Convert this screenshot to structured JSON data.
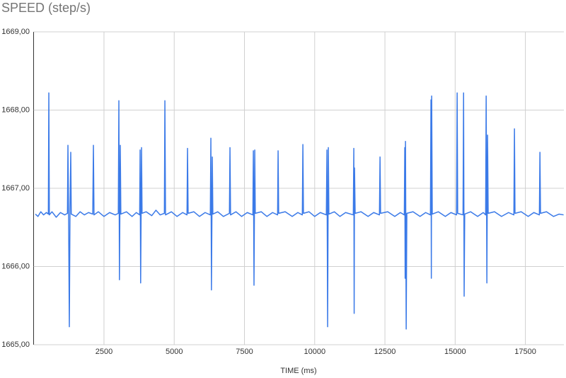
{
  "chart_data": {
    "type": "line",
    "title": "SPEED (step/s)",
    "x_label": "TIME (ms)",
    "color": "#3b7ae8",
    "xlim": [
      0,
      18870
    ],
    "xticks": [
      2500,
      5000,
      7500,
      10000,
      12500,
      15000,
      17500
    ],
    "ylim": [
      1665,
      1669
    ],
    "yticks": [
      {
        "value": 1665,
        "label": "1665,00"
      },
      {
        "value": 1666,
        "label": "1666,00"
      },
      {
        "value": 1667,
        "label": "1667,00"
      },
      {
        "value": 1668,
        "label": "1668,00"
      },
      {
        "value": 1669,
        "label": "1669,00"
      }
    ],
    "grid": true,
    "x": [
      60,
      150,
      250,
      350,
      450,
      520,
      537,
      555,
      650,
      800,
      950,
      1100,
      1200,
      1217,
      1240,
      1267,
      1290,
      1317,
      1335,
      1500,
      1650,
      1800,
      1950,
      2100,
      2124,
      2145,
      2300,
      2500,
      2700,
      2900,
      3010,
      3030,
      3050,
      3081,
      3100,
      3300,
      3500,
      3650,
      3770,
      3786,
      3805,
      3837,
      3855,
      4000,
      4200,
      4350,
      4500,
      4650,
      4668,
      4690,
      4900,
      5100,
      5300,
      5455,
      5474,
      5495,
      5700,
      5900,
      6100,
      6285,
      6305,
      6325,
      6356,
      6375,
      6550,
      6750,
      6965,
      6985,
      7005,
      7200,
      7400,
      7600,
      7800,
      7817,
      7840,
      7867,
      7885,
      8100,
      8300,
      8500,
      8680,
      8698,
      8718,
      8950,
      9200,
      9400,
      9560,
      9580,
      9600,
      9800,
      10000,
      10200,
      10415,
      10436,
      10461,
      10486,
      10505,
      10700,
      10900,
      11100,
      11375,
      11393,
      11405,
      11418,
      11440,
      11650,
      11900,
      12100,
      12305,
      12326,
      12345,
      12600,
      12850,
      13050,
      13190,
      13207,
      13220,
      13232,
      13257,
      13280,
      13500,
      13750,
      13950,
      14120,
      14139,
      14152,
      14164,
      14185,
      14400,
      14650,
      14850,
      15050,
      15071,
      15090,
      15280,
      15300,
      15320,
      15340,
      15550,
      15800,
      16000,
      16085,
      16104,
      16129,
      16154,
      16175,
      16400,
      16650,
      16900,
      17090,
      17111,
      17130,
      17350,
      17600,
      17800,
      17998,
      18018,
      18038,
      18250,
      18500,
      18700,
      18860
    ],
    "values": [
      1666.67,
      1666.64,
      1666.7,
      1666.66,
      1666.69,
      1666.67,
      1668.22,
      1666.66,
      1666.7,
      1666.63,
      1666.69,
      1666.66,
      1666.68,
      1667.55,
      1666.66,
      1665.23,
      1666.7,
      1667.46,
      1666.67,
      1666.64,
      1666.7,
      1666.66,
      1666.69,
      1666.67,
      1667.55,
      1666.66,
      1666.7,
      1666.64,
      1666.69,
      1666.66,
      1666.68,
      1668.12,
      1665.83,
      1667.55,
      1666.67,
      1666.7,
      1666.64,
      1666.69,
      1666.66,
      1667.49,
      1665.79,
      1667.52,
      1666.68,
      1666.7,
      1666.65,
      1666.72,
      1666.66,
      1666.68,
      1668.12,
      1666.66,
      1666.7,
      1666.64,
      1666.69,
      1666.66,
      1667.51,
      1666.68,
      1666.7,
      1666.64,
      1666.69,
      1666.66,
      1667.64,
      1665.7,
      1667.4,
      1666.67,
      1666.7,
      1666.64,
      1666.68,
      1667.52,
      1666.66,
      1666.7,
      1666.64,
      1666.69,
      1666.66,
      1667.48,
      1665.76,
      1667.49,
      1666.68,
      1666.7,
      1666.64,
      1666.69,
      1666.66,
      1667.48,
      1666.68,
      1666.7,
      1666.64,
      1666.69,
      1666.66,
      1667.56,
      1666.68,
      1666.7,
      1666.64,
      1666.69,
      1666.66,
      1667.49,
      1665.23,
      1667.52,
      1666.67,
      1666.7,
      1666.64,
      1666.69,
      1666.66,
      1667.51,
      1665.4,
      1667.26,
      1666.68,
      1666.7,
      1666.64,
      1666.69,
      1666.66,
      1667.4,
      1666.68,
      1666.7,
      1666.64,
      1666.69,
      1666.66,
      1667.52,
      1665.85,
      1667.6,
      1665.2,
      1666.68,
      1666.7,
      1666.64,
      1666.69,
      1666.66,
      1668.13,
      1665.85,
      1668.18,
      1666.67,
      1666.7,
      1666.64,
      1666.69,
      1666.66,
      1668.22,
      1666.68,
      1666.66,
      1668.22,
      1665.62,
      1666.67,
      1666.7,
      1666.64,
      1666.69,
      1666.66,
      1668.18,
      1665.79,
      1667.68,
      1666.68,
      1666.7,
      1666.64,
      1666.69,
      1666.66,
      1667.76,
      1666.68,
      1666.7,
      1666.64,
      1666.69,
      1666.66,
      1667.46,
      1666.68,
      1666.7,
      1666.64,
      1666.67,
      1666.66
    ]
  }
}
